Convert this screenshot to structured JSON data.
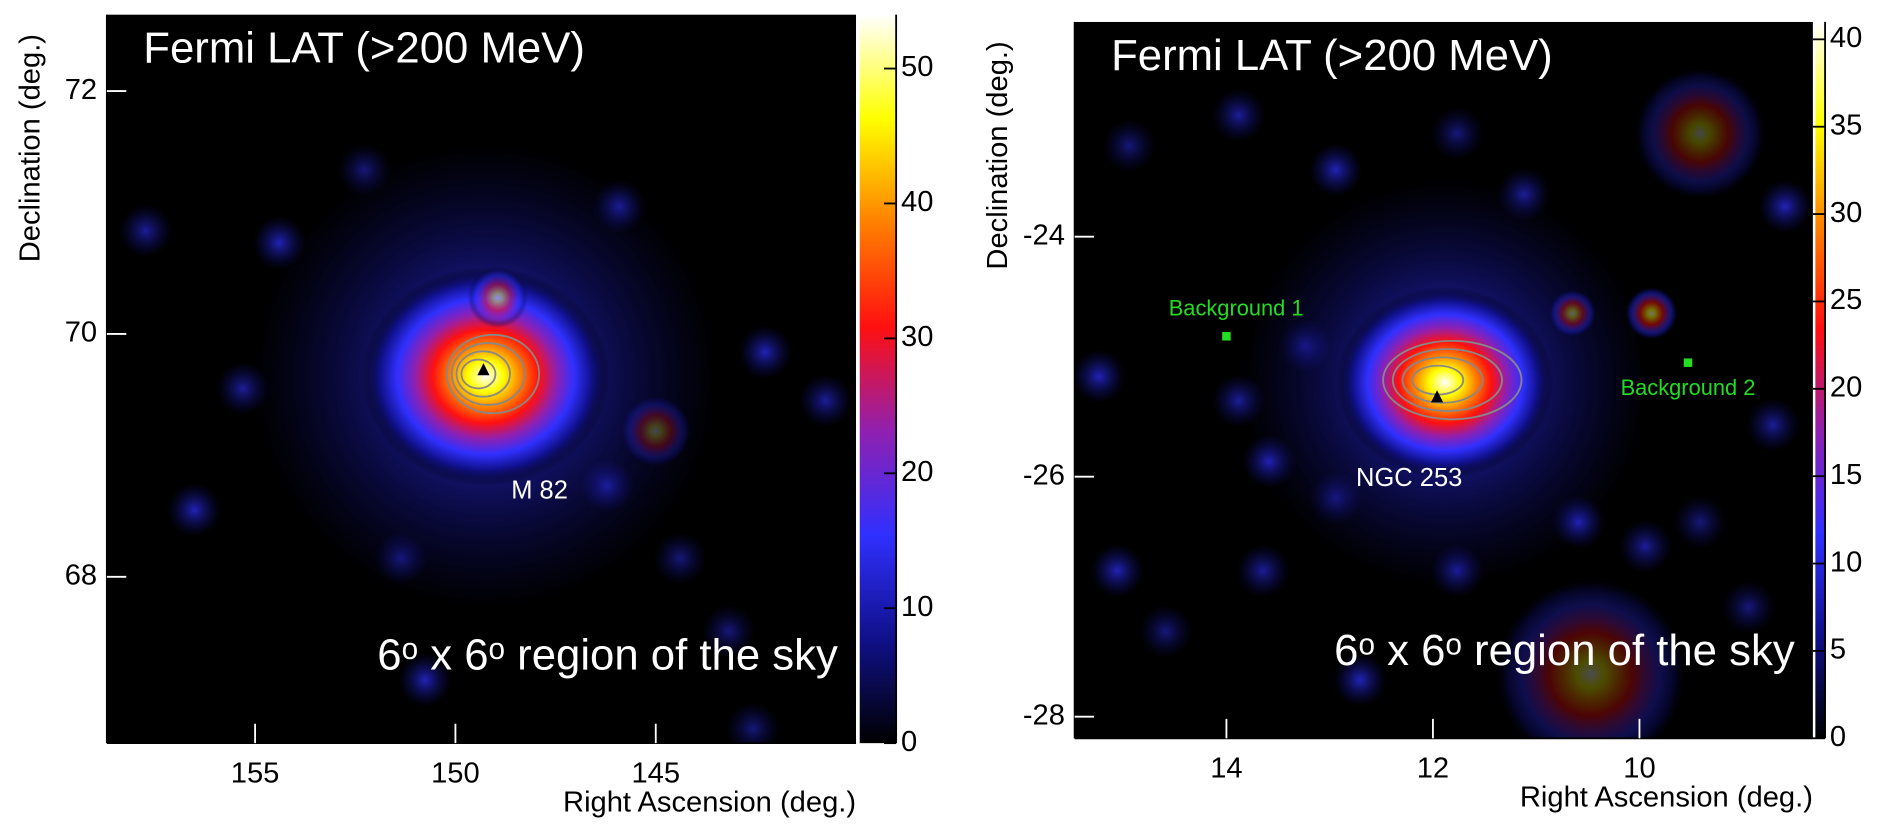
{
  "chart_data": [
    {
      "type": "heatmap",
      "title": "Fermi LAT (>200 MeV)",
      "subtitle": "6ᵒ x 6ᵒ region of the sky",
      "x_label": "Right Ascension (deg.)",
      "y_label": "Declination (deg.)",
      "xlim": [
        158.7,
        140
      ],
      "xticks": [
        155,
        150,
        145
      ],
      "ylim": [
        66.63,
        72.63
      ],
      "yticks": [
        68,
        70,
        72
      ],
      "zlim": [
        0,
        54
      ],
      "zticks": [
        0,
        10,
        20,
        30,
        40,
        50
      ],
      "colorscale": [
        "#000000",
        "#10108a",
        "#3030ff",
        "#9020b0",
        "#ff1010",
        "#ff8000",
        "#ffff00",
        "#ffffff"
      ],
      "annotations": [
        {
          "text": "M 82",
          "x": 147.9,
          "y": 68.7
        }
      ],
      "markers": [
        {
          "x": 149.3,
          "y": 69.7,
          "shape": "triangle",
          "color": "#000000"
        }
      ]
    },
    {
      "type": "heatmap",
      "title": "Fermi LAT (>200 MeV)",
      "subtitle": "6ᵒ x 6ᵒ region of the sky",
      "x_label": "Right Ascension (deg.)",
      "y_label": "Declination (deg.)",
      "xlim": [
        15.47,
        8.32
      ],
      "xticks": [
        14,
        12,
        10
      ],
      "ylim": [
        -28.18,
        -22.21
      ],
      "yticks": [
        -28,
        -26,
        -24
      ],
      "zlim": [
        0,
        41
      ],
      "zticks": [
        0,
        5,
        10,
        15,
        20,
        25,
        30,
        35,
        40
      ],
      "colorscale": [
        "#000000",
        "#10108a",
        "#3030ff",
        "#9020b0",
        "#ff1010",
        "#ff8000",
        "#ffff00",
        "#ffffff"
      ],
      "annotations": [
        {
          "text": "NGC 253",
          "x": 12.23,
          "y": -26.02
        }
      ],
      "markers": [
        {
          "x": 11.96,
          "y": -25.34,
          "shape": "triangle",
          "color": "#000000"
        },
        {
          "name": "Background 1",
          "x": 14.0,
          "y": -24.83,
          "shape": "square",
          "color": "#22dd22"
        },
        {
          "name": "Background 2",
          "x": 9.53,
          "y": -25.05,
          "shape": "square",
          "color": "#22dd22"
        }
      ]
    }
  ]
}
